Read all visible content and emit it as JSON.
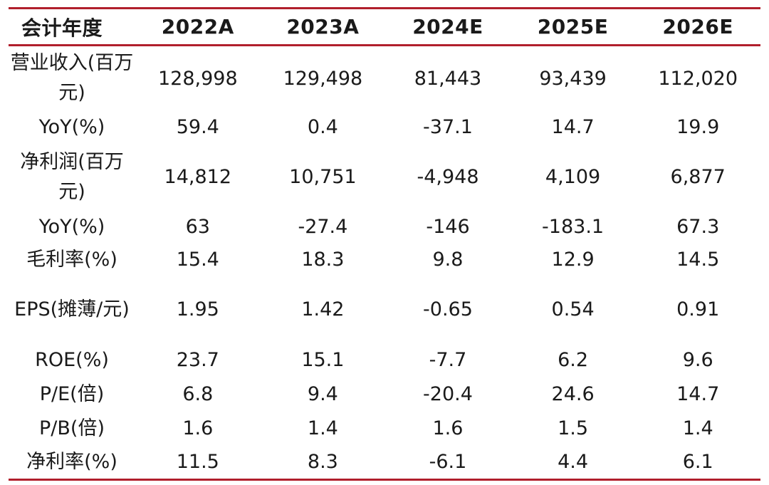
{
  "table": {
    "header": [
      "会计年度",
      "2022A",
      "2023A",
      "2024E",
      "2025E",
      "2026E"
    ],
    "rows": [
      {
        "metric": "营业收入(百万元)",
        "values": [
          "128,998",
          "129,498",
          "81,443",
          "93,439",
          "112,020"
        ]
      },
      {
        "metric": "YoY(%)",
        "values": [
          "59.4",
          "0.4",
          "-37.1",
          "14.7",
          "19.9"
        ]
      },
      {
        "metric": "净利润(百万元)",
        "values": [
          "14,812",
          "10,751",
          "-4,948",
          "4,109",
          "6,877"
        ]
      },
      {
        "metric": "YoY(%)",
        "values": [
          "63",
          "-27.4",
          "-146",
          "-183.1",
          "67.3"
        ]
      },
      {
        "metric": "毛利率(%)",
        "values": [
          "15.4",
          "18.3",
          "9.8",
          "12.9",
          "14.5"
        ]
      },
      {
        "metric": "EPS(摊薄/元)",
        "values": [
          "1.95",
          "1.42",
          "-0.65",
          "0.54",
          "0.91"
        ]
      },
      {
        "metric": "ROE(%)",
        "values": [
          "23.7",
          "15.1",
          "-7.7",
          "6.2",
          "9.6"
        ]
      },
      {
        "metric": "P/E(倍)",
        "values": [
          "6.8",
          "9.4",
          "-20.4",
          "24.6",
          "14.7"
        ]
      },
      {
        "metric": "P/B(倍)",
        "values": [
          "1.6",
          "1.4",
          "1.6",
          "1.5",
          "1.4"
        ]
      },
      {
        "metric": "净利率(%)",
        "values": [
          "11.5",
          "8.3",
          "-6.1",
          "4.4",
          "6.1"
        ]
      }
    ]
  },
  "colors": {
    "rule": "#b11f2c",
    "text": "#1a1a1a",
    "background": "#ffffff"
  }
}
